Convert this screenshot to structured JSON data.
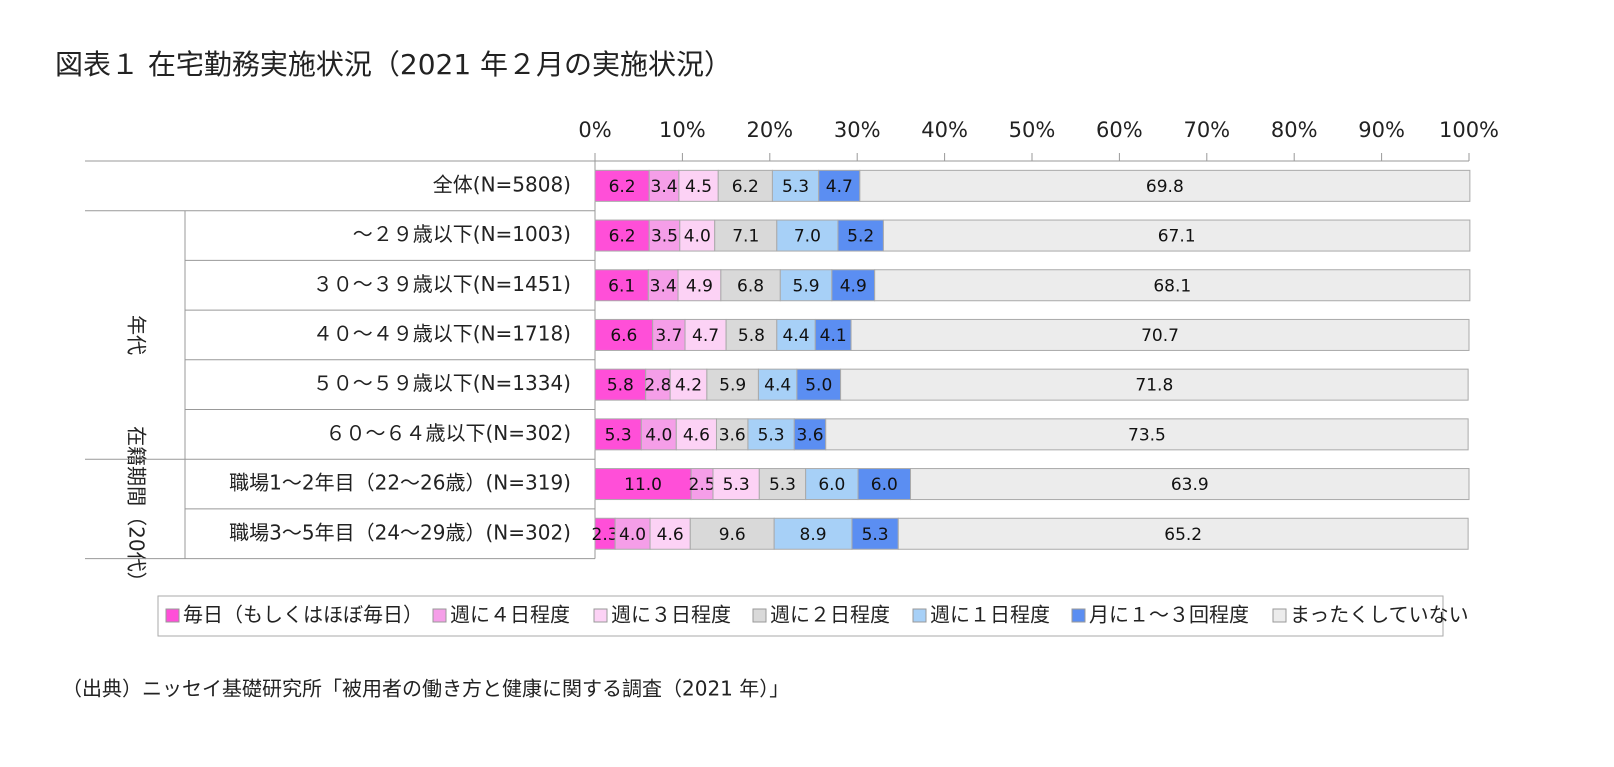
{
  "chart_data": {
    "type": "stacked-bar-horizontal",
    "title": "図表１ 在宅勤務実施状況（2021 年２月の実施状況）",
    "source": "（出典）ニッセイ基礎研究所「被用者の働き方と健康に関する調査（2021 年）」",
    "categories": [
      "全体(N=5808)",
      "～２９歳以下(N=1003)",
      "３０～３９歳以下(N=1451)",
      "４０～４９歳以下(N=1718)",
      "５０～５９歳以下(N=1334)",
      "６０～６４歳以下(N=302)",
      "職場1～2年目（22～26歳）(N=319)",
      "職場3～5年目（24～29歳）(N=302)"
    ],
    "row_groups": [
      null,
      "年代",
      "年代",
      "年代",
      "年代",
      "年代",
      "在籍期間（20代）",
      "在籍期間（20代）"
    ],
    "series": [
      {
        "name": "毎日（もしくはほぼ毎日）",
        "color": "#ff4fd8",
        "values": [
          6.2,
          6.2,
          6.1,
          6.6,
          5.8,
          5.3,
          11.0,
          2.3
        ],
        "value_labels": [
          "6.2",
          "6.2",
          "6.1",
          "6.6",
          "5.8",
          "5.3",
          "11.0",
          "2.3"
        ]
      },
      {
        "name": "週に４日程度",
        "color": "#f59ee8",
        "values": [
          3.4,
          3.5,
          3.4,
          3.7,
          2.8,
          4.0,
          2.5,
          4.0
        ],
        "value_labels": [
          "3.4",
          "3.5",
          "3.4",
          "3.7",
          "2.8",
          "4.0",
          "2.5",
          "4.0"
        ]
      },
      {
        "name": "週に３日程度",
        "color": "#fcd2f5",
        "values": [
          4.5,
          4.0,
          4.9,
          4.7,
          4.2,
          4.6,
          5.3,
          4.6
        ],
        "value_labels": [
          "4.5",
          "4.0",
          "4.9",
          "4.7",
          "4.2",
          "4.6",
          "5.3",
          "4.6"
        ]
      },
      {
        "name": "週に２日程度",
        "color": "#d9d9d9",
        "values": [
          6.2,
          7.1,
          6.8,
          5.8,
          5.9,
          3.6,
          5.3,
          9.6
        ],
        "value_labels": [
          "6.2",
          "7.1",
          "6.8",
          "5.8",
          "5.9",
          "3.6",
          "5.3",
          "9.6"
        ]
      },
      {
        "name": "週に１日程度",
        "color": "#a7d0f7",
        "values": [
          5.3,
          7.0,
          5.9,
          4.4,
          4.4,
          5.3,
          6.0,
          8.9
        ],
        "value_labels": [
          "5.3",
          "7.0",
          "5.9",
          "4.4",
          "4.4",
          "5.3",
          "6.0",
          "8.9"
        ]
      },
      {
        "name": "月に１～３回程度",
        "color": "#5b8ef2",
        "values": [
          4.7,
          5.2,
          4.9,
          4.1,
          5.0,
          3.6,
          6.0,
          5.3
        ],
        "value_labels": [
          "4.7",
          "5.2",
          "4.9",
          "4.1",
          "5.0",
          "3.6",
          "6.0",
          "5.3"
        ]
      },
      {
        "name": "まったくしていない",
        "color": "#ececec",
        "values": [
          69.8,
          67.1,
          68.1,
          70.7,
          71.8,
          73.5,
          63.9,
          65.2
        ],
        "value_labels": [
          "69.8",
          "67.1",
          "68.1",
          "70.7",
          "71.8",
          "73.5",
          "63.9",
          "65.2"
        ]
      }
    ],
    "xlim": [
      0,
      100
    ],
    "xticks": [
      {
        "value": 0,
        "label": "0%"
      },
      {
        "value": 10,
        "label": "10%"
      },
      {
        "value": 20,
        "label": "20%"
      },
      {
        "value": 30,
        "label": "30%"
      },
      {
        "value": 40,
        "label": "40%"
      },
      {
        "value": 50,
        "label": "50%"
      },
      {
        "value": 60,
        "label": "60%"
      },
      {
        "value": 70,
        "label": "70%"
      },
      {
        "value": 80,
        "label": "80%"
      },
      {
        "value": 90,
        "label": "90%"
      },
      {
        "value": 100,
        "label": "100%"
      }
    ],
    "legend": "bottom"
  }
}
